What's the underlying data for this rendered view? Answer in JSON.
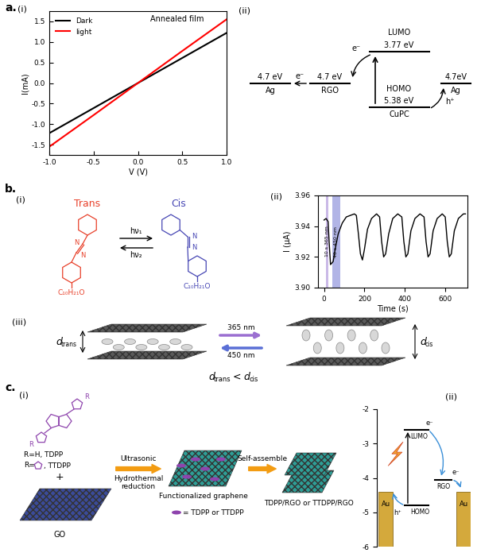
{
  "panel_letters": [
    "a.",
    "b.",
    "c."
  ],
  "chart_data": [
    {
      "type": "line",
      "panel_label": "(i)",
      "annotation": "Annealed film",
      "x": [
        -1.0,
        -0.5,
        0.0,
        0.5,
        1.0
      ],
      "series": [
        {
          "name": "Dark",
          "color": "#000000",
          "values": [
            -1.22,
            -0.61,
            0.0,
            0.61,
            1.22
          ]
        },
        {
          "name": "light",
          "color": "#ff0000",
          "values": [
            -1.55,
            -0.78,
            0.0,
            0.78,
            1.55
          ]
        }
      ],
      "xlabel": "V (V)",
      "ylabel": "I(mA)",
      "xlim": [
        -1.0,
        1.0
      ],
      "ylim": [
        -1.75,
        1.75
      ],
      "xticks": [
        {
          "value": -1.0,
          "label": "-1.0"
        },
        -0.5,
        {
          "value": 0,
          "label": "0.0"
        },
        0.5,
        {
          "value": 1.0,
          "label": "1.0"
        }
      ],
      "yticks": [
        -1.5,
        {
          "value": -1.0,
          "label": "-1.0"
        },
        -0.5,
        {
          "value": 0,
          "label": "0.0"
        },
        0.5,
        {
          "value": 1.0,
          "label": "1.0"
        },
        1.5
      ],
      "legend": "upper left"
    },
    {
      "type": "line",
      "panel_label": "(ii)",
      "x": [
        0,
        10,
        20,
        25,
        32,
        45,
        55,
        70,
        90,
        110,
        130,
        150,
        160,
        170,
        180,
        190,
        200,
        215,
        235,
        260,
        275,
        285,
        295,
        305,
        320,
        340,
        365,
        385,
        395,
        405,
        415,
        430,
        450,
        475,
        495,
        505,
        515,
        525,
        540,
        560,
        585,
        600,
        610,
        620,
        630,
        645,
        665,
        690,
        700
      ],
      "values": [
        3.944,
        3.945,
        3.943,
        3.93,
        3.915,
        3.917,
        3.925,
        3.935,
        3.942,
        3.946,
        3.947,
        3.948,
        3.947,
        3.935,
        3.922,
        3.918,
        3.925,
        3.938,
        3.945,
        3.948,
        3.946,
        3.93,
        3.92,
        3.922,
        3.935,
        3.945,
        3.948,
        3.946,
        3.93,
        3.92,
        3.922,
        3.937,
        3.945,
        3.948,
        3.946,
        3.93,
        3.92,
        3.922,
        3.937,
        3.945,
        3.948,
        3.946,
        3.93,
        3.92,
        3.922,
        3.937,
        3.945,
        3.948,
        3.948
      ],
      "color": "#000000",
      "xlabel": "Time (s)",
      "ylabel": "I (μA)",
      "xlim": [
        -30,
        710
      ],
      "ylim": [
        3.9,
        3.96
      ],
      "xticks": [
        0,
        200,
        400,
        600
      ],
      "yticks": [
        {
          "value": 3.9,
          "label": "3.90"
        },
        3.92,
        3.94,
        3.96
      ],
      "shaded_regions": [
        {
          "xmin": 10,
          "xmax": 20,
          "label": "10 s 365 nm",
          "color": "#a78bd8"
        },
        {
          "xmin": 40,
          "xmax": 80,
          "label": "40 s 450 nm",
          "color": "#7d83d6"
        }
      ]
    },
    {
      "type": "energy_level",
      "panel_label": "(ii)",
      "ylim": [
        -6,
        -2
      ],
      "yticks": [
        -2,
        -3,
        -4,
        -5,
        -6
      ],
      "levels": [
        {
          "name": "LUMO",
          "value": -2.6
        },
        {
          "name": "HOMO",
          "value": -4.8
        },
        {
          "name": "RGO",
          "value": -4.05
        },
        {
          "name": "Au",
          "value": -4.4
        }
      ],
      "electron": "e⁻",
      "hole": "h⁺"
    }
  ],
  "diagrams": {
    "a_ii": {
      "panel_label": "(ii)",
      "electron": "e⁻",
      "hole": "h⁺",
      "left_electrode": {
        "name": "Ag",
        "energy": "4.7 eV"
      },
      "acceptor": {
        "name": "RGO",
        "energy": "4.7 eV"
      },
      "donor": {
        "name": "CuPC",
        "lumo": {
          "name": "LUMO",
          "energy": "3.77 eV"
        },
        "homo": {
          "name": "HOMO",
          "energy": "5.38 eV"
        }
      },
      "right_electrode": {
        "name": "Ag",
        "energy": "4.7eV"
      }
    },
    "b_i": {
      "panel_label": "(i)",
      "trans": {
        "name": "Trans",
        "color": "#e8402a"
      },
      "cis": {
        "name": "Cis",
        "color": "#4646b4"
      },
      "atom": "N",
      "substituent": "C₁₀H₂₁O",
      "forward": "hν₁",
      "backward": "hν₂"
    },
    "b_iii": {
      "panel_label": "(iii)",
      "forward": {
        "label": "365 nm",
        "color": "#9b6fd1"
      },
      "backward": {
        "label": "450 nm",
        "color": "#5a6fd6"
      },
      "symbol": "d",
      "trans": "trans",
      "cis": "cis",
      "relation": "<"
    },
    "c_i": {
      "panel_label": "(i)",
      "substituent": "R",
      "tdpp": "R=H, TDPP",
      "ttdpp_prefix": "R=",
      "ttdpp_suffix": ", TTDPP",
      "plus": "+",
      "go": "GO",
      "step1_above": "Ultrasonic",
      "step1_below": "Hydrothermal\nreduction",
      "intermediate": "Functionalized graphene",
      "marker_legend": "= TDPP or TTDPP",
      "step2": "Self-assemble",
      "product": "TDPP/RGO or TTDPP/RGO",
      "molecule_color": "#8e44ad"
    }
  }
}
